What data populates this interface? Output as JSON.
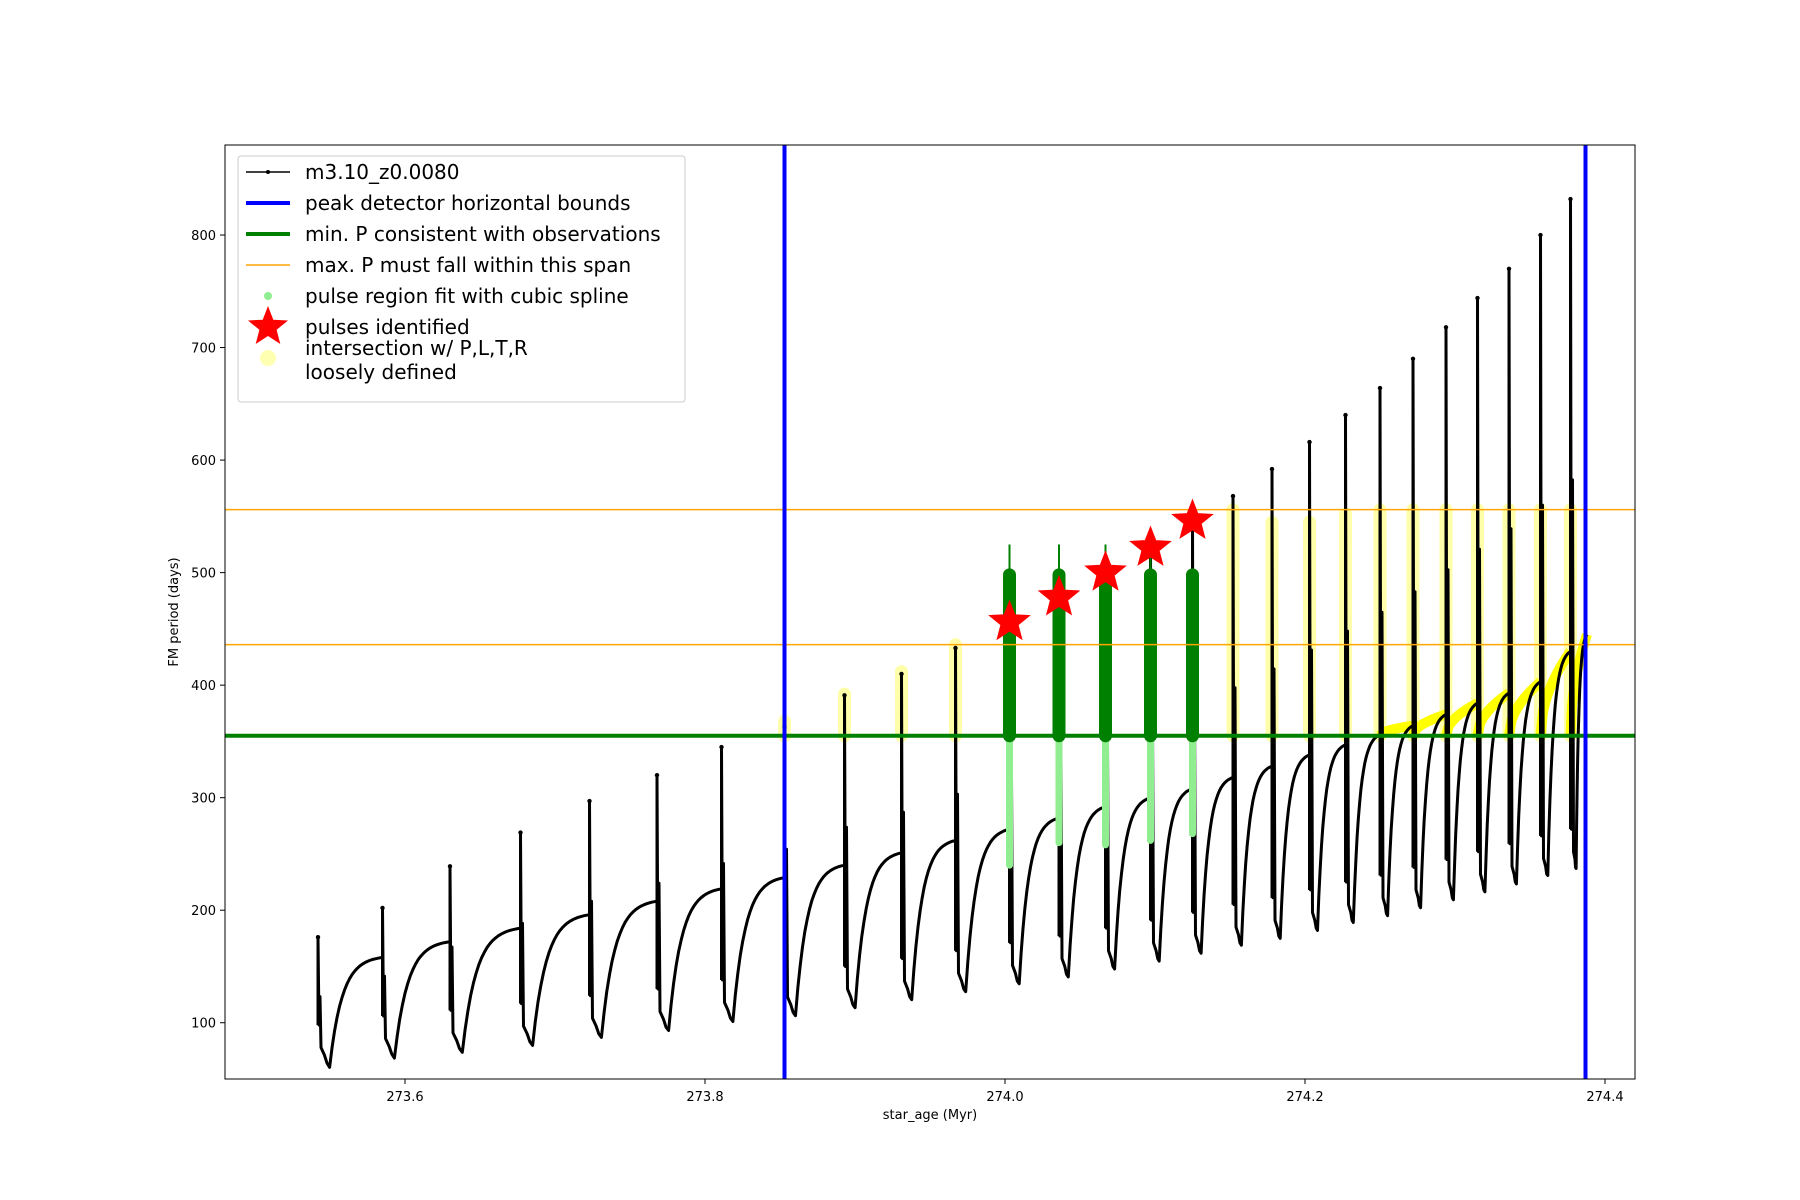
{
  "chart_data": {
    "type": "line",
    "xlabel": "star_age (Myr)",
    "ylabel": "FM period (days)",
    "xlim": [
      273.48,
      274.42
    ],
    "ylim": [
      50,
      880
    ],
    "xticks": [
      273.6,
      273.8,
      274.0,
      274.2,
      274.4
    ],
    "xtick_labels": [
      "273.6",
      "273.8",
      "274.0",
      "274.2",
      "274.4"
    ],
    "yticks": [
      100,
      200,
      300,
      400,
      500,
      600,
      700,
      800
    ],
    "ytick_labels": [
      "100",
      "200",
      "300",
      "400",
      "500",
      "600",
      "700",
      "800"
    ],
    "grid": false,
    "legend_position": "top-left",
    "legend": [
      {
        "label": "m3.10_z0.0080",
        "style": "line-marker",
        "color": "#000000"
      },
      {
        "label": "peak detector horizontal bounds",
        "style": "line",
        "color": "#0000ff"
      },
      {
        "label": "min. P consistent with observations",
        "style": "line",
        "color": "#008000"
      },
      {
        "label": "max. P must fall within this span",
        "style": "thin-line",
        "color": "#ffa500"
      },
      {
        "label": "pulse region fit with cubic spline",
        "style": "dot",
        "color": "#90ee90"
      },
      {
        "label": "pulses identified",
        "style": "star",
        "color": "#ff0000"
      },
      {
        "label_lines": [
          "intersection w/ P,L,T,R",
          "loosely defined"
        ],
        "style": "dot",
        "color": "#ffff66"
      }
    ],
    "series": [
      {
        "name": "m3.10_z0.0080",
        "color": "#000000",
        "pulses": [
          {
            "t": 273.542,
            "base": 143,
            "min": 58,
            "spike": 176
          },
          {
            "t": 273.585,
            "base": 158,
            "min": 66,
            "spike": 202
          },
          {
            "t": 273.63,
            "base": 172,
            "min": 71,
            "spike": 239
          },
          {
            "t": 273.677,
            "base": 184,
            "min": 77,
            "spike": 269
          },
          {
            "t": 273.723,
            "base": 196,
            "min": 84,
            "spike": 297
          },
          {
            "t": 273.768,
            "base": 208,
            "min": 90,
            "spike": 320
          },
          {
            "t": 273.811,
            "base": 219,
            "min": 98,
            "spike": 345
          },
          {
            "t": 273.853,
            "base": 229,
            "min": 103,
            "spike": 363
          },
          {
            "t": 273.893,
            "base": 240,
            "min": 110,
            "spike": 391
          },
          {
            "t": 273.931,
            "base": 251,
            "min": 117,
            "spike": 410
          },
          {
            "t": 273.967,
            "base": 262,
            "min": 124,
            "spike": 433
          },
          {
            "t": 274.003,
            "base": 272,
            "min": 131,
            "spike": 455
          },
          {
            "t": 274.036,
            "base": 282,
            "min": 137,
            "spike": 480
          },
          {
            "t": 274.067,
            "base": 292,
            "min": 144,
            "spike": 500
          },
          {
            "t": 274.097,
            "base": 300,
            "min": 151,
            "spike": 521
          },
          {
            "t": 274.125,
            "base": 308,
            "min": 158,
            "spike": 545
          },
          {
            "t": 274.152,
            "base": 318,
            "min": 165,
            "spike": 568
          },
          {
            "t": 274.178,
            "base": 328,
            "min": 171,
            "spike": 592
          },
          {
            "t": 274.203,
            "base": 338,
            "min": 178,
            "spike": 616
          },
          {
            "t": 274.227,
            "base": 347,
            "min": 185,
            "spike": 640
          },
          {
            "t": 274.25,
            "base": 356,
            "min": 191,
            "spike": 664
          },
          {
            "t": 274.272,
            "base": 364,
            "min": 198,
            "spike": 690
          },
          {
            "t": 274.294,
            "base": 374,
            "min": 205,
            "spike": 718
          },
          {
            "t": 274.315,
            "base": 384,
            "min": 212,
            "spike": 744
          },
          {
            "t": 274.336,
            "base": 393,
            "min": 219,
            "spike": 770
          },
          {
            "t": 274.357,
            "base": 403,
            "min": 226,
            "spike": 800
          },
          {
            "t": 274.377,
            "base": 430,
            "min": 232,
            "spike": 832
          }
        ],
        "end": {
          "t": 274.388,
          "y": 445
        }
      }
    ],
    "peak_detector_bounds_x": [
      273.853,
      274.387
    ],
    "min_P_observations": 355,
    "max_P_span": [
      436,
      556
    ],
    "pulses_identified": [
      {
        "x": 274.003,
        "y": 456
      },
      {
        "x": 274.036,
        "y": 478
      },
      {
        "x": 274.067,
        "y": 500
      },
      {
        "x": 274.097,
        "y": 522
      },
      {
        "x": 274.125,
        "y": 546
      }
    ],
    "spline_fit_regions": [
      {
        "x": 274.003,
        "y_low": 240,
        "y_high": 498,
        "spike": 525
      },
      {
        "x": 274.036,
        "y_low": 260,
        "y_high": 498,
        "spike": 525
      },
      {
        "x": 274.067,
        "y_low": 258,
        "y_high": 498,
        "spike": 525
      },
      {
        "x": 274.097,
        "y_low": 262,
        "y_high": 498,
        "spike": 525
      },
      {
        "x": 274.125,
        "y_low": 268,
        "y_high": 498,
        "spike": 0
      }
    ],
    "loosely_defined_regions": [
      {
        "x": 273.853,
        "y_low": 355,
        "y_high": 368
      },
      {
        "x": 273.893,
        "y_low": 355,
        "y_high": 392
      },
      {
        "x": 273.931,
        "y_low": 355,
        "y_high": 412
      },
      {
        "x": 273.967,
        "y_low": 355,
        "y_high": 436
      },
      {
        "x": 274.152,
        "y_low": 355,
        "y_high": 556
      },
      {
        "x": 274.178,
        "y_low": 355,
        "y_high": 545
      },
      {
        "x": 274.203,
        "y_low": 355,
        "y_high": 545
      },
      {
        "x": 274.227,
        "y_low": 355,
        "y_high": 552
      },
      {
        "x": 274.25,
        "y_low": 355,
        "y_high": 556
      },
      {
        "x": 274.272,
        "y_low": 355,
        "y_high": 556
      },
      {
        "x": 274.294,
        "y_low": 355,
        "y_high": 556
      },
      {
        "x": 274.315,
        "y_low": 355,
        "y_high": 556
      },
      {
        "x": 274.336,
        "y_low": 355,
        "y_high": 556
      },
      {
        "x": 274.357,
        "y_low": 355,
        "y_high": 556
      },
      {
        "x": 274.377,
        "y_low": 355,
        "y_high": 556
      }
    ],
    "loosely_defined_tail_start_x": 274.24
  }
}
